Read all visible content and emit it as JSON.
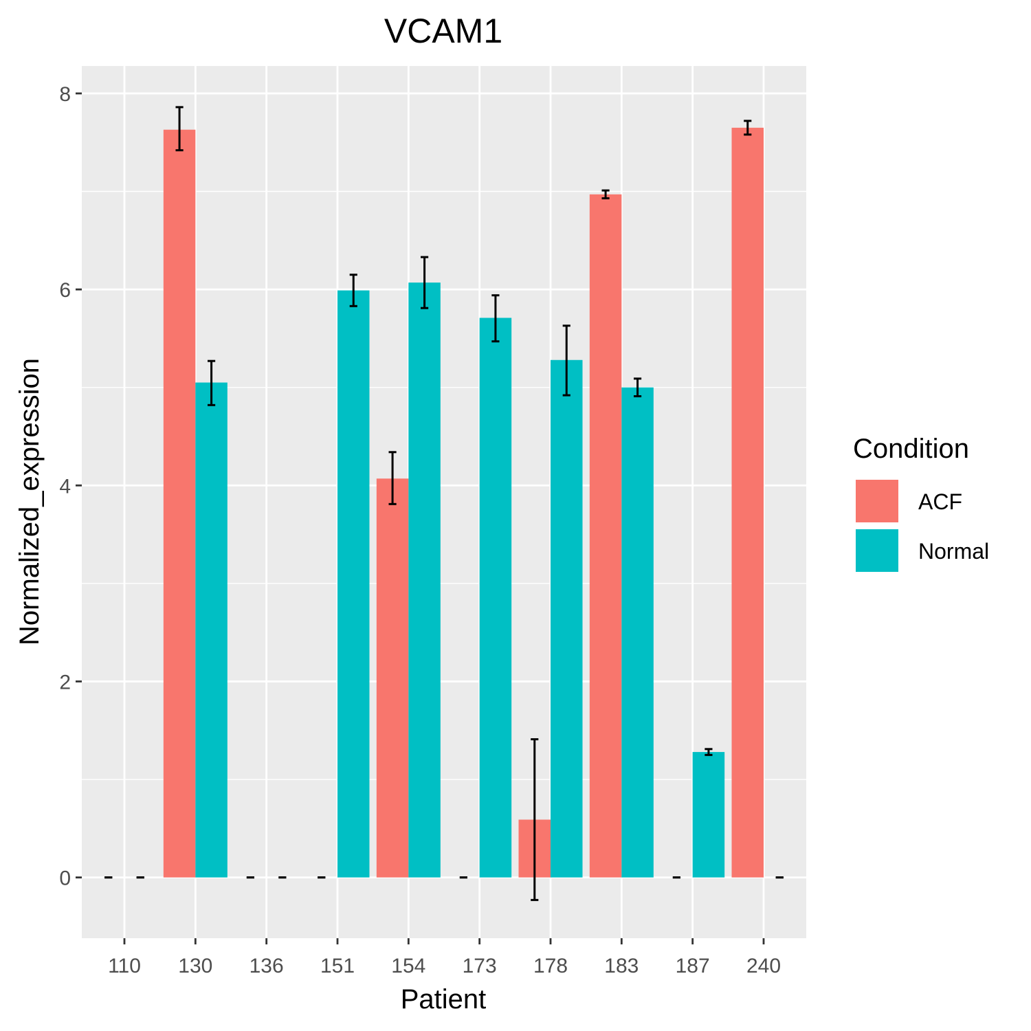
{
  "chart_data": {
    "type": "bar",
    "title": "VCAM1",
    "xlabel": "Patient",
    "ylabel": "Normalized_expression",
    "categories": [
      "110",
      "130",
      "136",
      "151",
      "154",
      "173",
      "178",
      "183",
      "187",
      "240"
    ],
    "ylim": [
      -0.62,
      8.28
    ],
    "yticks": [
      0,
      2,
      4,
      6,
      8
    ],
    "grid": true,
    "legend_position": "right",
    "legend_title": "Condition",
    "series": [
      {
        "name": "ACF",
        "color": "#F8766D",
        "values": [
          0,
          7.63,
          0,
          0,
          4.07,
          0,
          0.59,
          6.97,
          0,
          7.65
        ],
        "err_low": [
          0,
          7.42,
          0,
          0,
          3.81,
          0,
          -0.23,
          6.93,
          0,
          7.58
        ],
        "err_high": [
          0,
          7.86,
          0,
          0,
          4.34,
          0,
          1.41,
          7.01,
          0,
          7.72
        ]
      },
      {
        "name": "Normal",
        "color": "#00BFC4",
        "values": [
          0,
          5.05,
          0,
          5.99,
          6.07,
          5.71,
          5.28,
          5.0,
          1.28,
          0
        ],
        "err_low": [
          0,
          4.82,
          0,
          5.83,
          5.81,
          5.47,
          4.92,
          4.91,
          1.25,
          0
        ],
        "err_high": [
          0,
          5.27,
          0,
          6.15,
          6.33,
          5.94,
          5.63,
          5.09,
          1.31,
          0
        ]
      }
    ]
  }
}
